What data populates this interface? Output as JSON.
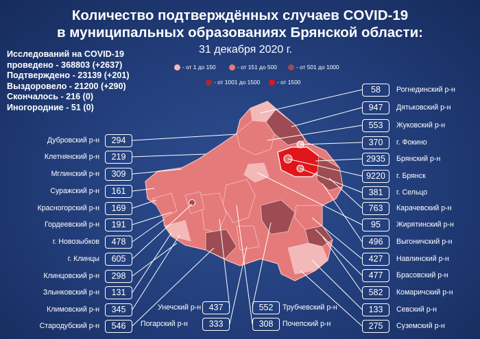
{
  "title_line1": "Количество подтверждённых случаев COVID-19",
  "title_line2": "в муниципальных образованиях Брянской области:",
  "date": "31 декабря 2020 г.",
  "stats": [
    "Исследований на COVID-19",
    "проведено - 368803  (+2637)",
    "Подтверждено - 23139 (+201)",
    "Выздоровело - 21200 (+290)",
    "Скончалось - 216 (0)",
    "Иногородние - 51 (0)"
  ],
  "legend": [
    {
      "label": "- от 1 до 150",
      "color": "#f3b8b8"
    },
    {
      "label": "- от 151 до 500",
      "color": "#e57a7a"
    },
    {
      "label": "- от 501 до 1000",
      "color": "#9c4c52"
    },
    {
      "label": "- от 1001 до 1500",
      "color": "#a52b2b"
    },
    {
      "label": "- от 1500",
      "color": "#e0161b"
    }
  ],
  "colors": {
    "level1": "#f3b8b8",
    "level2": "#e57a7a",
    "level3": "#9c4c52",
    "level4": "#a52b2b",
    "level5": "#e0161b",
    "background": "#213c78"
  },
  "left_districts": [
    {
      "name": "Дубровский р-н",
      "value": "294"
    },
    {
      "name": "Клетнянский р-н",
      "value": "219"
    },
    {
      "name": "Мглинский р-н",
      "value": "309"
    },
    {
      "name": "Суражский р-н",
      "value": "161"
    },
    {
      "name": "Красногорский р-н",
      "value": "169"
    },
    {
      "name": "Гордеевский р-н",
      "value": "191"
    },
    {
      "name": "г. Новозыбков",
      "value": "478"
    },
    {
      "name": "г. Клинцы",
      "value": "605"
    },
    {
      "name": "Клинцовский р-н",
      "value": "298"
    },
    {
      "name": "Злынковский р-н",
      "value": "131"
    },
    {
      "name": "Климовский  р-н",
      "value": "345"
    },
    {
      "name": "Стародубский р-н",
      "value": "546"
    }
  ],
  "right_districts": [
    {
      "name": "Рогнединский р-н",
      "value": "58"
    },
    {
      "name": "Дятьковский р-н",
      "value": "947"
    },
    {
      "name": "Жуковский р-н",
      "value": "553"
    },
    {
      "name": "г. Фокино",
      "value": "370"
    },
    {
      "name": "Брянский р-н",
      "value": "2935"
    },
    {
      "name": "г. Брянск",
      "value": "9220"
    },
    {
      "name": "г. Сельцо",
      "value": "381"
    },
    {
      "name": "Карачевский р-н",
      "value": "763"
    },
    {
      "name": "Жирятинский р-н",
      "value": "95"
    },
    {
      "name": "Выгоничский р-н",
      "value": "496"
    },
    {
      "name": "Навлинский р-н",
      "value": "427"
    },
    {
      "name": "Брасовский р-н",
      "value": "477"
    },
    {
      "name": "Комаричский р-н",
      "value": "582"
    },
    {
      "name": "Севский р-н",
      "value": "133"
    },
    {
      "name": "Суземский р-н",
      "value": "275"
    }
  ],
  "bottom_districts": [
    {
      "name": "Унечский р-н",
      "value": "437"
    },
    {
      "name": "Погарский р-н",
      "value": "333"
    },
    {
      "name": "Трубчевский р-н",
      "value": "552"
    },
    {
      "name": "Почепский р-н",
      "value": "308"
    }
  ]
}
